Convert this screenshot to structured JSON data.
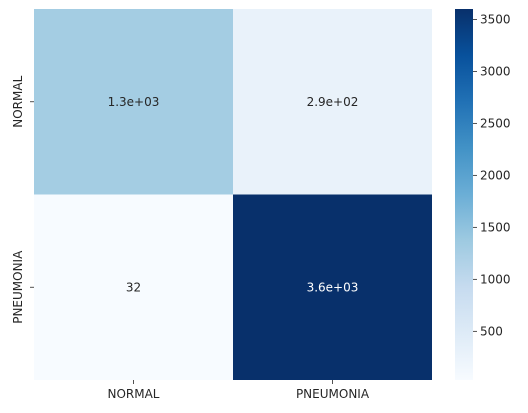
{
  "chart_data": {
    "type": "heatmap",
    "x_categories": [
      "NORMAL",
      "PNEUMONIA"
    ],
    "y_categories": [
      "NORMAL",
      "PNEUMONIA"
    ],
    "values": [
      [
        1300,
        290
      ],
      [
        32,
        3600
      ]
    ],
    "annotations": [
      [
        "1.3e+03",
        "2.9e+02"
      ],
      [
        "32",
        "3.6e+03"
      ]
    ],
    "colormap": "Blues",
    "colorbar": {
      "range": [
        32,
        3600
      ],
      "ticks": [
        500,
        1000,
        1500,
        2000,
        2500,
        3000,
        3500
      ],
      "tick_labels": [
        "500",
        "1000",
        "1500",
        "2000",
        "2500",
        "3000",
        "3500"
      ]
    }
  }
}
